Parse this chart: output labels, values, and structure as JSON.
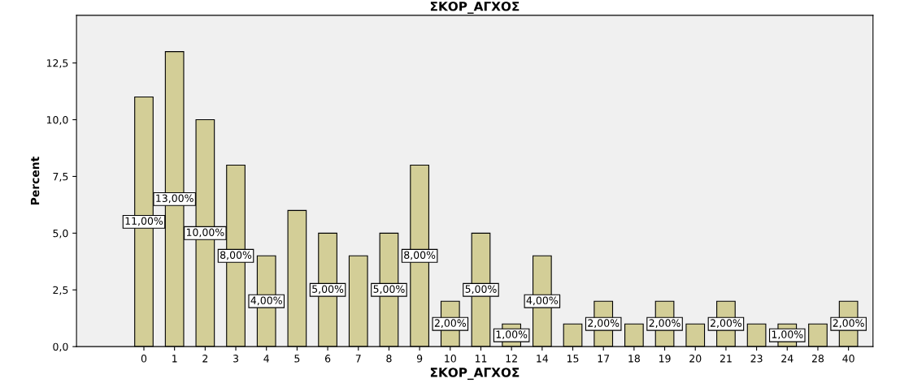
{
  "chart_data": {
    "type": "bar",
    "title": "ΣΚΟΡ_ΑΓΧΟΣ",
    "xlabel": "ΣΚΟΡ_ΑΓΧΟΣ",
    "ylabel": "Percent",
    "categories": [
      "0",
      "1",
      "2",
      "3",
      "4",
      "5",
      "6",
      "7",
      "8",
      "9",
      "10",
      "11",
      "12",
      "14",
      "15",
      "17",
      "18",
      "19",
      "20",
      "21",
      "23",
      "24",
      "28",
      "40"
    ],
    "values": [
      11,
      13,
      10,
      8,
      4,
      6,
      5,
      4,
      5,
      8,
      2,
      5,
      1,
      4,
      1,
      2,
      1,
      2,
      1,
      2,
      1,
      1,
      1,
      2
    ],
    "value_labels": [
      "11,00%",
      "13,00%",
      "10,00%",
      "8,00%",
      "4,00%",
      null,
      "5,00%",
      null,
      "5,00%",
      "8,00%",
      "2,00%",
      "5,00%",
      "1,00%",
      "4,00%",
      null,
      "2,00%",
      null,
      "2,00%",
      null,
      "2,00%",
      null,
      "1,00%",
      null,
      "2,00%"
    ],
    "color": "#d3ce97",
    "ylim": [
      0,
      14.6
    ],
    "yticks": [
      {
        "value": 0,
        "label": "0,0"
      },
      {
        "value": 2.5,
        "label": "2,5"
      },
      {
        "value": 5,
        "label": "5,0"
      },
      {
        "value": 7.5,
        "label": "7,5"
      },
      {
        "value": 10,
        "label": "10,0"
      },
      {
        "value": 12.5,
        "label": "12,5"
      }
    ],
    "grid": false
  }
}
